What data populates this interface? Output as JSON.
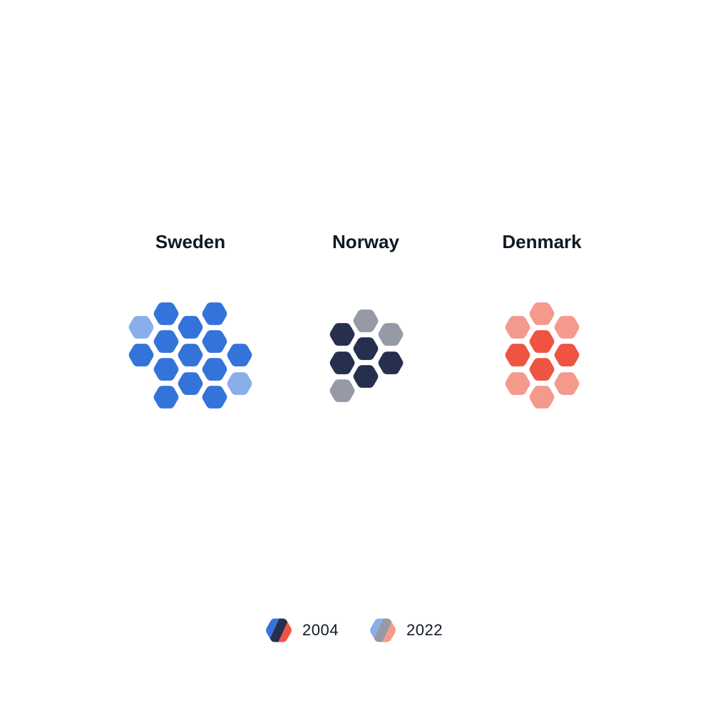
{
  "chart_data": {
    "type": "hexbin-waffle",
    "title": "",
    "unit_note": "",
    "legend": {
      "placement": "bottom-center",
      "items": [
        {
          "label": "2004",
          "shade": "dark",
          "colors": [
            "#3474DA",
            "#262F4E",
            "#EF5442"
          ]
        },
        {
          "label": "2022",
          "shade": "light",
          "colors": [
            "#89AEEA",
            "#9699A6",
            "#F49A8D"
          ]
        }
      ]
    },
    "countries": [
      {
        "name": "Sweden",
        "color_2004": "#3474DA",
        "color_2022": "#89AEEA",
        "count_2004": 13,
        "count_2022": 2
      },
      {
        "name": "Norway",
        "color_2004": "#262F4E",
        "color_2022": "#9699A6",
        "count_2004": 5,
        "count_2022": 3
      },
      {
        "name": "Denmark",
        "color_2004": "#EF5442",
        "color_2022": "#F49A8D",
        "count_2004": 4,
        "count_2022": 6
      }
    ]
  }
}
